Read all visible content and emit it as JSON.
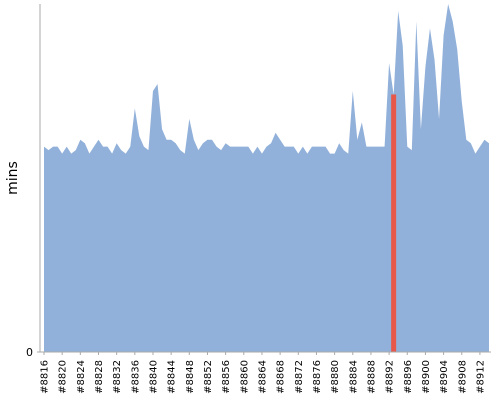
{
  "chart_data": {
    "type": "area",
    "y_label": "mins",
    "categories": [
      "#8816",
      null,
      null,
      null,
      "#8820",
      null,
      null,
      null,
      "#8824",
      null,
      null,
      null,
      "#8828",
      null,
      null,
      null,
      "#8832",
      null,
      null,
      null,
      "#8836",
      null,
      null,
      null,
      "#8840",
      null,
      null,
      null,
      "#8844",
      null,
      null,
      null,
      "#8848",
      null,
      null,
      null,
      "#8852",
      null,
      null,
      null,
      "#8856",
      null,
      null,
      null,
      "#8860",
      null,
      null,
      null,
      "#8864",
      null,
      null,
      null,
      "#8868",
      null,
      null,
      null,
      "#8872",
      null,
      null,
      null,
      "#8876",
      null,
      null,
      null,
      "#8880",
      null,
      null,
      null,
      "#8884",
      null,
      null,
      null,
      "#8888",
      null,
      null,
      null,
      "#8892",
      null,
      null,
      null,
      "#8896",
      null,
      null,
      null,
      "#8900",
      null,
      null,
      null,
      "#8904",
      null,
      null,
      null,
      "#8908",
      null,
      null,
      null,
      "#8912",
      null,
      null
    ],
    "values": [
      59,
      58,
      59,
      59,
      57,
      59,
      57,
      58,
      61,
      60,
      57,
      59,
      61,
      59,
      59,
      57,
      60,
      58,
      57,
      59,
      70,
      62,
      59,
      58,
      75,
      77,
      64,
      61,
      61,
      60,
      58,
      57,
      67,
      61,
      58,
      60,
      61,
      61,
      59,
      58,
      60,
      59,
      59,
      59,
      59,
      59,
      57,
      59,
      57,
      59,
      60,
      63,
      61,
      59,
      59,
      59,
      57,
      59,
      57,
      59,
      59,
      59,
      59,
      57,
      57,
      60,
      58,
      57,
      75,
      61,
      66,
      59,
      59,
      59,
      59,
      59,
      83,
      74,
      98,
      88,
      59,
      58,
      95,
      64,
      82,
      93,
      84,
      67,
      91,
      100,
      95,
      87,
      72,
      61,
      60,
      57,
      59,
      61,
      60
    ],
    "color": "#92b1da",
    "highlight": 77,
    "highlight_color": "#e8584a",
    "ylim": [
      0,
      100
    ],
    "yticks": [
      0
    ]
  }
}
